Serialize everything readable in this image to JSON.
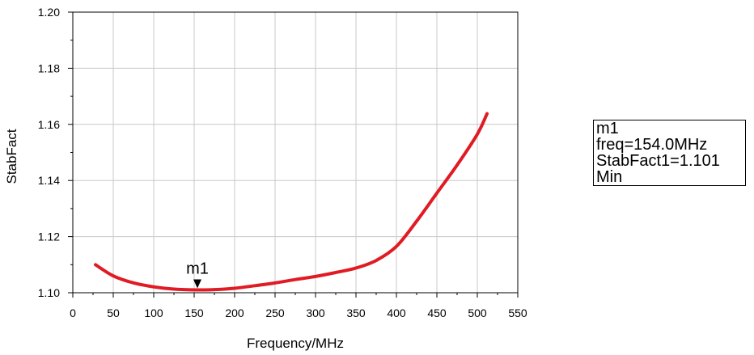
{
  "chart_data": {
    "type": "line",
    "title": "",
    "xlabel": "Frequency/MHz",
    "ylabel": "StabFact",
    "xlim": [
      0,
      550
    ],
    "ylim": [
      1.1,
      1.2
    ],
    "grid": true,
    "x_ticks": [
      "0",
      "50",
      "100",
      "150",
      "200",
      "250",
      "300",
      "350",
      "400",
      "450",
      "500",
      "550"
    ],
    "y_ticks": [
      "1.10",
      "1.12",
      "1.14",
      "1.16",
      "1.18",
      "1.20"
    ],
    "color": "#e01b24",
    "series": [
      {
        "x": [
          28,
          50,
          75,
          100,
          125,
          154,
          175,
          200,
          225,
          250,
          275,
          300,
          325,
          350,
          375,
          400,
          425,
          450,
          475,
          500,
          512
        ],
        "y": [
          1.11,
          1.106,
          1.1035,
          1.1021,
          1.1013,
          1.101,
          1.1011,
          1.1016,
          1.1025,
          1.1035,
          1.1047,
          1.1058,
          1.1072,
          1.1088,
          1.1115,
          1.1165,
          1.1255,
          1.1355,
          1.1455,
          1.1565,
          1.1638
        ]
      }
    ],
    "marker": {
      "name": "m1",
      "x": 154.0,
      "y": 1.101,
      "readout": [
        "m1",
        "freq=154.0MHz",
        "StabFact1=1.101",
        "Min"
      ]
    }
  }
}
